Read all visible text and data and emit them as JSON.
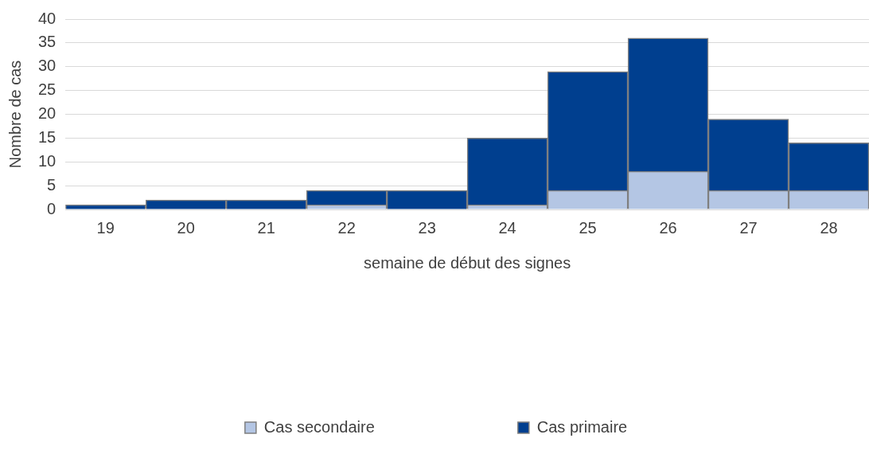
{
  "chart_data": {
    "type": "bar",
    "stacked": true,
    "xlabel": "semaine de début des signes",
    "ylabel": "Nombre de cas",
    "categories": [
      "19",
      "20",
      "21",
      "22",
      "23",
      "24",
      "25",
      "26",
      "27",
      "28"
    ],
    "series": [
      {
        "name": "Cas secondaire",
        "color": "#b4c6e4",
        "values": [
          0,
          0,
          0,
          1,
          0,
          1,
          4,
          8,
          4,
          4
        ]
      },
      {
        "name": "Cas primaire",
        "color": "#003f8f",
        "values": [
          1,
          2,
          2,
          3,
          4,
          14,
          25,
          28,
          15,
          10
        ]
      }
    ],
    "ylim": [
      0,
      40
    ],
    "yticks": [
      0,
      5,
      10,
      15,
      20,
      25,
      30,
      35,
      40
    ],
    "grid": "y",
    "legend": "bottom"
  }
}
